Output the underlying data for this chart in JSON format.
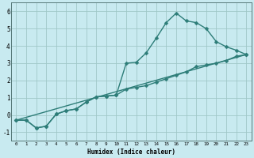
{
  "title": "",
  "xlabel": "Humidex (Indice chaleur)",
  "ylabel": "",
  "background_color": "#c8eaf0",
  "grid_color": "#a0c8c8",
  "line_color": "#2d7d78",
  "xlim": [
    -0.5,
    23.5
  ],
  "ylim": [
    -1.5,
    6.5
  ],
  "xticks": [
    0,
    1,
    2,
    3,
    4,
    5,
    6,
    7,
    8,
    9,
    10,
    11,
    12,
    13,
    14,
    15,
    16,
    17,
    18,
    19,
    20,
    21,
    22,
    23
  ],
  "yticks": [
    -1,
    0,
    1,
    2,
    3,
    4,
    5,
    6
  ],
  "series": [
    {
      "x": [
        0,
        1,
        2,
        3,
        4,
        5,
        6,
        7,
        8,
        9,
        10,
        11,
        12,
        13,
        14,
        15,
        16,
        17,
        18,
        19,
        20,
        21,
        22,
        23
      ],
      "y": [
        -0.3,
        -0.3,
        -0.75,
        -0.65,
        0.05,
        0.25,
        0.35,
        0.75,
        1.05,
        1.1,
        1.15,
        3.0,
        3.05,
        3.6,
        4.45,
        5.35,
        5.9,
        5.45,
        5.35,
        5.0,
        4.25,
        3.95,
        3.75,
        3.5
      ],
      "marker": "D",
      "markersize": 2.5,
      "linewidth": 1.0
    },
    {
      "x": [
        0,
        1,
        2,
        3,
        4,
        5,
        6,
        7,
        8,
        9,
        10,
        11,
        12,
        13,
        14,
        15,
        16,
        17,
        18,
        19,
        20,
        21,
        22,
        23
      ],
      "y": [
        -0.3,
        -0.3,
        -0.75,
        -0.65,
        0.05,
        0.25,
        0.35,
        0.75,
        1.05,
        1.1,
        1.15,
        1.5,
        1.6,
        1.7,
        1.9,
        2.1,
        2.3,
        2.5,
        2.8,
        2.9,
        3.0,
        3.15,
        3.4,
        3.5
      ],
      "marker": "D",
      "markersize": 2.5,
      "linewidth": 1.0
    },
    {
      "x": [
        0,
        23
      ],
      "y": [
        -0.3,
        3.5
      ],
      "marker": null,
      "markersize": 0,
      "linewidth": 1.0
    }
  ],
  "figsize": [
    3.2,
    2.0
  ],
  "dpi": 100
}
